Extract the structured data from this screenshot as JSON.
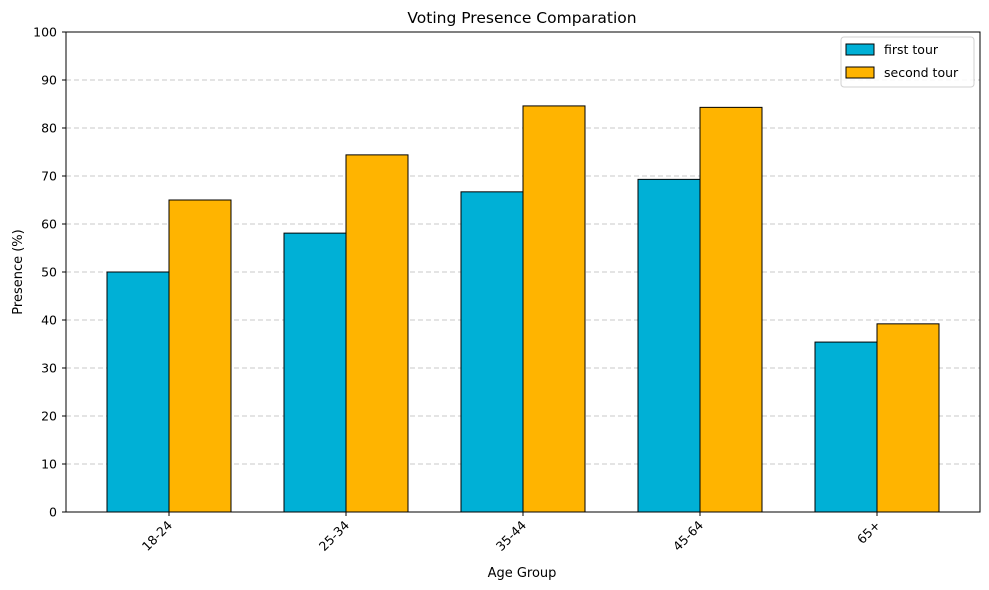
{
  "chart_data": {
    "type": "bar",
    "title": "Voting Presence Comparation",
    "xlabel": "Age Group",
    "ylabel": "Presence (%)",
    "categories": [
      "18-24",
      "25-34",
      "35-44",
      "45-64",
      "65+"
    ],
    "series": [
      {
        "name": "first tour",
        "color": "#00b0d6",
        "values": [
          50.0,
          58.1,
          66.7,
          69.3,
          35.4
        ]
      },
      {
        "name": "second tour",
        "color": "#ffb400",
        "values": [
          65.0,
          74.4,
          84.6,
          84.3,
          39.2
        ]
      }
    ],
    "ylim": [
      0,
      100
    ],
    "yticks": [
      0,
      10,
      20,
      30,
      40,
      50,
      60,
      70,
      80,
      90,
      100
    ],
    "grid": "y-axis dashed",
    "legend_position": "top-right",
    "x_tick_rotation": "45 degrees"
  }
}
